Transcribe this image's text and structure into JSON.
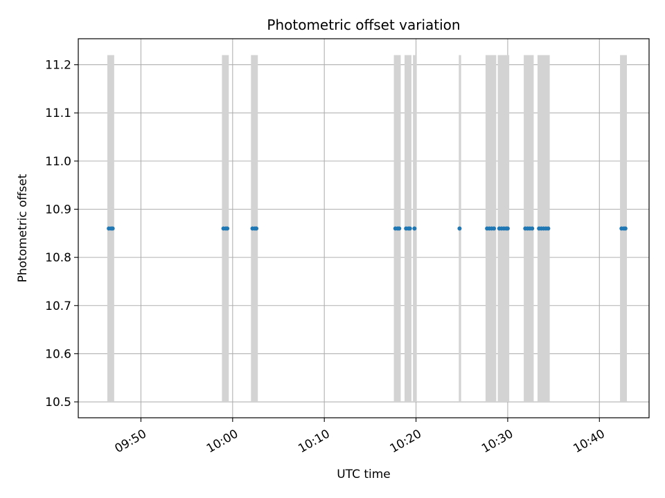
{
  "chart_data": {
    "type": "scatter",
    "title": "Photometric offset variation",
    "xlabel": "UTC time",
    "ylabel": "Photometric offset",
    "grid": true,
    "xlim": [
      "09:43:10",
      "10:45:25"
    ],
    "ylim": [
      10.467,
      11.254
    ],
    "x_ticks": [
      "09:50",
      "10:00",
      "10:10",
      "10:20",
      "10:30",
      "10:40"
    ],
    "y_ticks": [
      "10.5",
      "10.6",
      "10.7",
      "10.8",
      "10.9",
      "11.0",
      "11.1",
      "11.2"
    ],
    "colors": {
      "points": "#1f77b4",
      "bands": "#d3d3d3",
      "grid": "#b0b0b0"
    },
    "bands": {
      "y_range": [
        10.5,
        11.22
      ],
      "intervals": [
        [
          "09:46:20",
          "09:47:05"
        ],
        [
          "09:58:50",
          "09:59:35"
        ],
        [
          "10:02:00",
          "10:02:45"
        ],
        [
          "10:17:35",
          "10:18:20"
        ],
        [
          "10:18:45",
          "10:19:30"
        ],
        [
          "10:19:40",
          "10:20:05"
        ],
        [
          "10:24:40",
          "10:24:55"
        ],
        [
          "10:27:35",
          "10:28:45"
        ],
        [
          "10:28:55",
          "10:30:10"
        ],
        [
          "10:31:45",
          "10:32:50"
        ],
        [
          "10:33:15",
          "10:34:35"
        ],
        [
          "10:42:15",
          "10:43:00"
        ]
      ]
    },
    "series": [
      {
        "y": 10.86,
        "x": [
          "09:46:30",
          "09:46:45",
          "09:46:55",
          "09:59:00",
          "09:59:15",
          "09:59:25",
          "10:02:10",
          "10:02:25",
          "10:02:35",
          "10:17:45",
          "10:18:00",
          "10:18:10",
          "10:18:55",
          "10:19:10",
          "10:19:20",
          "10:19:50",
          "10:24:45",
          "10:27:45",
          "10:28:00",
          "10:28:15",
          "10:28:30",
          "10:29:05",
          "10:29:20",
          "10:29:35",
          "10:29:50",
          "10:30:00",
          "10:31:55",
          "10:32:10",
          "10:32:25",
          "10:32:40",
          "10:33:25",
          "10:33:40",
          "10:33:55",
          "10:34:10",
          "10:34:25",
          "10:42:25",
          "10:42:40",
          "10:42:50"
        ]
      }
    ]
  }
}
